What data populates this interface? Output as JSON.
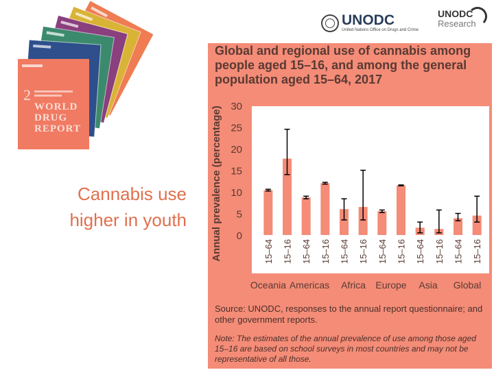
{
  "slide": {
    "headline_line1": "Cannabis use",
    "headline_line2": "higher in youth"
  },
  "logos": {
    "unodc": "UNODC",
    "unodc_sub": "United Nations Office on Drugs and Crime",
    "research_top": "UNODC",
    "research_bottom": "Research"
  },
  "cover": {
    "number": "2",
    "title_1": "WORLD",
    "title_2": "DRUG",
    "title_3": "REPORT"
  },
  "colors": {
    "panel": "#f48c77",
    "bar": "#f48c77",
    "text": "#5a3a33",
    "headline": "#e0704e"
  },
  "chart_data": {
    "type": "bar",
    "title": "Global and regional use of cannabis among people aged 15–16, and among the general population aged 15–64, 2017",
    "ylabel": "Annual prevalence (percentage)",
    "ylim": [
      0,
      30
    ],
    "yticks": [
      0,
      5,
      10,
      15,
      20,
      25,
      30
    ],
    "categories": [
      "15–64",
      "15–16",
      "15–64",
      "15–16",
      "15–64",
      "15–16",
      "15–64",
      "15–16",
      "15–64",
      "15–16",
      "15–64",
      "15–16"
    ],
    "groups": [
      "Oceania",
      "Americas",
      "Africa",
      "Europe",
      "Asia",
      "Global"
    ],
    "values": [
      10.4,
      17.7,
      8.7,
      12.0,
      6.0,
      6.5,
      5.5,
      11.5,
      1.7,
      1.4,
      3.9,
      4.5
    ],
    "error_low": [
      10.2,
      14.0,
      8.4,
      11.8,
      3.5,
      3.5,
      5.2,
      11.4,
      0.5,
      0.5,
      3.3,
      3.0
    ],
    "error_high": [
      10.6,
      24.5,
      9.0,
      12.2,
      8.4,
      15.0,
      5.8,
      11.6,
      3.0,
      5.8,
      5.0,
      9.0
    ],
    "source": "Source: UNODC, responses to the annual report questionnaire; and other government reports.",
    "note": "Note: The estimates of the annual prevalence of use among those aged 15–16 are based on school surveys in most countries and may not be representative of all those."
  }
}
